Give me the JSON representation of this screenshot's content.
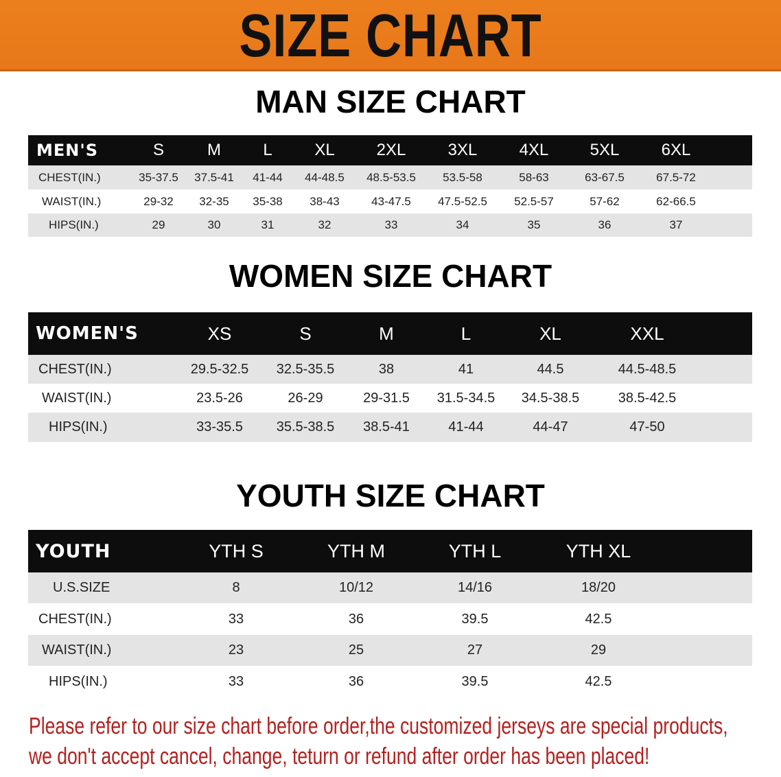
{
  "title": "SIZE CHART",
  "colors": {
    "banner": "#ec7f1d",
    "header_row": "#0d0d0d",
    "stripe": "#e4e4e4",
    "notice": "#b3201f"
  },
  "men": {
    "section_title": "MAN SIZE CHART",
    "header": [
      "MEN'S",
      "S",
      "M",
      "L",
      "XL",
      "2XL",
      "3XL",
      "4XL",
      "5XL",
      "6XL"
    ],
    "rows": [
      [
        "CHEST(IN.)",
        "35-37.5",
        "37.5-41",
        "41-44",
        "44-48.5",
        "48.5-53.5",
        "53.5-58",
        "58-63",
        "63-67.5",
        "67.5-72"
      ],
      [
        "WAIST(IN.)",
        "29-32",
        "32-35",
        "35-38",
        "38-43",
        "43-47.5",
        "47.5-52.5",
        "52.5-57",
        "57-62",
        "62-66.5"
      ],
      [
        "HIPS(IN.)",
        "29",
        "30",
        "31",
        "32",
        "33",
        "34",
        "35",
        "36",
        "37"
      ]
    ]
  },
  "women": {
    "section_title": "WOMEN SIZE CHART",
    "header": [
      "WOMEN'S",
      "XS",
      "S",
      "M",
      "L",
      "XL",
      "XXL"
    ],
    "rows": [
      [
        "CHEST(IN.)",
        "29.5-32.5",
        "32.5-35.5",
        "38",
        "41",
        "44.5",
        "44.5-48.5"
      ],
      [
        "WAIST(IN.)",
        "23.5-26",
        "26-29",
        "29-31.5",
        "31.5-34.5",
        "34.5-38.5",
        "38.5-42.5"
      ],
      [
        "HIPS(IN.)",
        "33-35.5",
        "35.5-38.5",
        "38.5-41",
        "41-44",
        "44-47",
        "47-50"
      ]
    ]
  },
  "youth": {
    "section_title": "YOUTH SIZE CHART",
    "header": [
      "YOUTH",
      "YTH S",
      "YTH M",
      "YTH L",
      "YTH XL"
    ],
    "rows": [
      [
        "U.S.SIZE",
        "8",
        "10/12",
        "14/16",
        "18/20"
      ],
      [
        "CHEST(IN.)",
        "33",
        "36",
        "39.5",
        "42.5"
      ],
      [
        "WAIST(IN.)",
        "23",
        "25",
        "27",
        "29"
      ],
      [
        "HIPS(IN.)",
        "33",
        "36",
        "39.5",
        "42.5"
      ]
    ]
  },
  "notice": {
    "line1": "Please refer to our size chart before order,the customized jerseys are special products,",
    "line2": "we don't accept cancel, change, teturn or refund after order has been placed!"
  }
}
